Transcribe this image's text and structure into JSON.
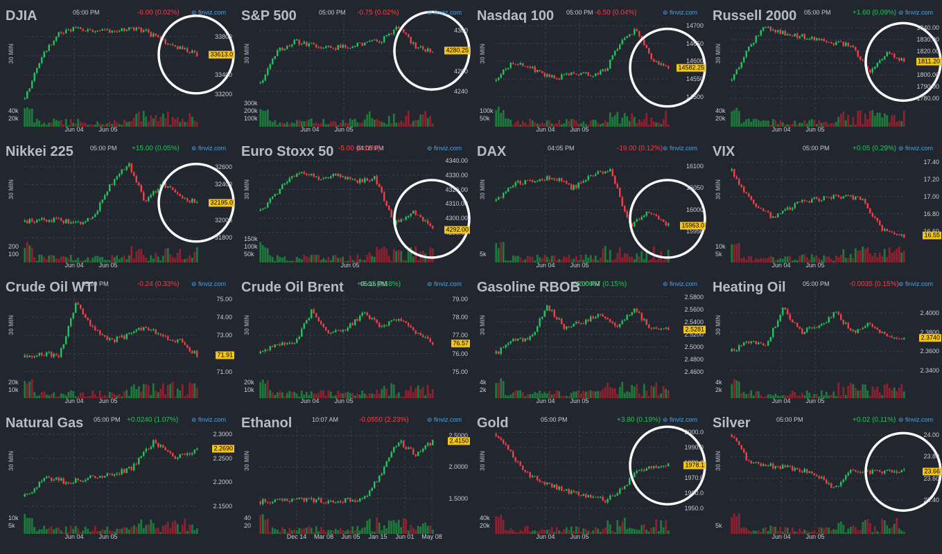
{
  "brand": "finviz.com",
  "side_label": "30 MIN",
  "colors": {
    "up": "#22c35a",
    "down": "#f23f45",
    "vol_up": "#1e7a3c",
    "vol_down": "#8c2230",
    "background": "#22262f",
    "highlight": "#f5c518"
  },
  "chart_data": [
    {
      "type": "candlestick",
      "title": "DJIA",
      "time": "05:00 PM",
      "change": "-6.00 (0.02%)",
      "direction": "neg",
      "last": "33613.0",
      "circled": true,
      "y_ticks": [
        "33800",
        "33600",
        "33400",
        "33200"
      ],
      "y_range": [
        33100,
        33950
      ],
      "vol_ticks": [
        "40k",
        "20k"
      ],
      "x_ticks": [
        "Jun 04",
        "Jun 05"
      ],
      "path": [
        33150,
        33600,
        33850,
        33880,
        33870,
        33860,
        33890,
        33860,
        33750,
        33680,
        33613
      ]
    },
    {
      "type": "candlestick",
      "title": "S&P 500",
      "time": "05:00 PM",
      "change": "-0.75 (0.02%)",
      "direction": "neg",
      "last": "4280.25",
      "circled": true,
      "y_ticks": [
        "4300",
        "4280",
        "4260",
        "4240"
      ],
      "y_range": [
        4228,
        4308
      ],
      "vol_ticks": [
        "300k",
        "200k",
        "100k"
      ],
      "x_ticks": [
        "Jun 04",
        "Jun 05"
      ],
      "path": [
        4248,
        4280,
        4289,
        4286,
        4283,
        4284,
        4287,
        4290,
        4303,
        4284,
        4280
      ]
    },
    {
      "type": "candlestick",
      "title": "Nasdaq 100",
      "time": "05:00 PM",
      "change": "-6.50 (0.04%)",
      "direction": "neg",
      "last": "14582.25",
      "circled": true,
      "y_ticks": [
        "14700",
        "14650",
        "14600",
        "14550",
        "14500"
      ],
      "y_range": [
        14480,
        14710
      ],
      "vol_ticks": [
        "100k",
        "50k"
      ],
      "x_ticks": [
        "Jun 04",
        "Jun 05"
      ],
      "path": [
        14545,
        14600,
        14590,
        14560,
        14555,
        14570,
        14560,
        14575,
        14660,
        14690,
        14600,
        14582
      ]
    },
    {
      "type": "candlestick",
      "title": "Russell 2000",
      "time": "05:00 PM",
      "change": "+1.60 (0.09%)",
      "direction": "pos",
      "last": "1811.20",
      "circled": true,
      "y_ticks": [
        "1840.00",
        "1830.00",
        "1820.00",
        "1810.00",
        "1800.00",
        "1790.00",
        "1780.00"
      ],
      "y_range": [
        1775,
        1845
      ],
      "vol_ticks": [
        "40k",
        "20k"
      ],
      "x_ticks": [
        "Jun 04",
        "Jun 05"
      ],
      "path": [
        1795,
        1825,
        1841,
        1836,
        1833,
        1830,
        1827,
        1825,
        1802,
        1819,
        1811
      ]
    },
    {
      "type": "candlestick",
      "title": "Nikkei 225",
      "time": "05:00 PM",
      "change": "+15.00 (0.05%)",
      "direction": "pos",
      "last": "32195.0",
      "circled": true,
      "y_ticks": [
        "32600",
        "32400",
        "32200",
        "32000",
        "31800"
      ],
      "y_range": [
        31780,
        32700
      ],
      "vol_ticks": [
        "200",
        "100"
      ],
      "x_ticks": [
        "Jun 04",
        "Jun 05"
      ],
      "path": [
        31980,
        32010,
        32000,
        31960,
        32050,
        32400,
        32650,
        32200,
        32420,
        32250,
        32195
      ]
    },
    {
      "type": "candlestick",
      "title": "Euro Stoxx 50",
      "time": "04:05 PM",
      "change": "-5.00 (0.12%)",
      "direction": "neg",
      "last": "4292.00",
      "circled": true,
      "y_ticks": [
        "4340.00",
        "4330.00",
        "4320.00",
        "4310.00",
        "4300.00",
        "4290.00"
      ],
      "y_range": [
        4285,
        4342
      ],
      "vol_ticks": [
        "150k",
        "100k",
        "50k"
      ],
      "x_ticks": [
        "Jun 05"
      ],
      "path": [
        4305,
        4320,
        4333,
        4328,
        4330,
        4326,
        4328,
        4296,
        4305,
        4292
      ]
    },
    {
      "type": "candlestick",
      "title": "DAX",
      "time": "04:05 PM",
      "change": "-19.00 (0.12%)",
      "direction": "neg",
      "last": "15963.0",
      "circled": true,
      "y_ticks": [
        "16100",
        "16050",
        "16000",
        "15950"
      ],
      "y_range": [
        15930,
        16120
      ],
      "vol_ticks": [
        "5k"
      ],
      "x_ticks": [
        "Jun 04",
        "Jun 05"
      ],
      "path": [
        16020,
        16060,
        16070,
        16075,
        16050,
        16080,
        16090,
        15960,
        15995,
        15963
      ]
    },
    {
      "type": "candlestick",
      "title": "VIX",
      "time": "05:00 PM",
      "change": "+0.05 (0.29%)",
      "direction": "pos",
      "last": "16.55",
      "circled": false,
      "y_ticks": [
        "17.40",
        "17.20",
        "17.00",
        "16.80",
        "16.60"
      ],
      "y_range": [
        16.5,
        17.45
      ],
      "vol_ticks": [
        "10k",
        "5k"
      ],
      "x_ticks": [
        "Jun 04",
        "Jun 05"
      ],
      "path": [
        17.3,
        16.9,
        16.75,
        16.92,
        16.97,
        17.0,
        16.98,
        16.6,
        16.55
      ]
    },
    {
      "type": "candlestick",
      "title": "Crude Oil WTI",
      "time": "05:00 PM",
      "change": "-0.24 (0.33%)",
      "direction": "neg",
      "last": "71.91",
      "circled": false,
      "y_ticks": [
        "75.00",
        "74.00",
        "73.00",
        "72.00",
        "71.00"
      ],
      "y_range": [
        70.8,
        75.3
      ],
      "vol_ticks": [
        "20k",
        "10k"
      ],
      "x_ticks": [
        "Jun 04",
        "Jun 05"
      ],
      "path": [
        71.8,
        72.0,
        71.9,
        74.8,
        73.4,
        72.7,
        73.0,
        73.5,
        72.9,
        72.7,
        71.91
      ]
    },
    {
      "type": "candlestick",
      "title": "Crude Oil Brent",
      "time": "05:16 PM",
      "change": "+0.44 (0.58%)",
      "direction": "pos",
      "last": "76.57",
      "circled": false,
      "y_ticks": [
        "79.00",
        "78.00",
        "77.00",
        "76.00",
        "75.00"
      ],
      "y_range": [
        74.8,
        79.3
      ],
      "vol_ticks": [
        "20k",
        "10k"
      ],
      "x_ticks": [
        "Jun 04",
        "Jun 05"
      ],
      "path": [
        76.0,
        76.5,
        76.6,
        78.4,
        77.1,
        77.4,
        78.2,
        77.5,
        78.0,
        77.2,
        76.57
      ]
    },
    {
      "type": "candlestick",
      "title": "Gasoline RBOB",
      "time": "05:00 PM",
      "change": "+0.0037 (0.15%)",
      "direction": "pos",
      "last": "2.5281",
      "circled": false,
      "y_ticks": [
        "2.5800",
        "2.5600",
        "2.5400",
        "2.5200",
        "2.5000",
        "2.4800",
        "2.4600"
      ],
      "y_range": [
        2.455,
        2.585
      ],
      "vol_ticks": [
        "4k",
        "2k"
      ],
      "x_ticks": [
        "Jun 04",
        "Jun 05"
      ],
      "path": [
        2.49,
        2.51,
        2.515,
        2.565,
        2.53,
        2.54,
        2.55,
        2.53,
        2.56,
        2.53,
        2.5281
      ]
    },
    {
      "type": "candlestick",
      "title": "Heating Oil",
      "time": "05:00 PM",
      "change": "-0.0035 (0.15%)",
      "direction": "neg",
      "last": "2.3740",
      "circled": false,
      "y_ticks": [
        "2.4000",
        "2.3800",
        "2.3600",
        "2.3400"
      ],
      "y_range": [
        2.335,
        2.42
      ],
      "vol_ticks": [
        "4k",
        "2k"
      ],
      "x_ticks": [
        "Jun 04",
        "Jun 05"
      ],
      "path": [
        2.36,
        2.37,
        2.368,
        2.405,
        2.38,
        2.385,
        2.4,
        2.38,
        2.39,
        2.375,
        2.374
      ]
    },
    {
      "type": "candlestick",
      "title": "Natural Gas",
      "time": "05:00 PM",
      "change": "+0.0240 (1.07%)",
      "direction": "pos",
      "last": "2.2690",
      "circled": false,
      "y_ticks": [
        "2.3000",
        "2.2500",
        "2.2000",
        "2.1500"
      ],
      "y_range": [
        2.14,
        2.31
      ],
      "vol_ticks": [
        "10k",
        "5k"
      ],
      "x_ticks": [
        "Jun 04",
        "Jun 05"
      ],
      "path": [
        2.17,
        2.21,
        2.2,
        2.21,
        2.215,
        2.23,
        2.285,
        2.25,
        2.269
      ]
    },
    {
      "type": "candlestick",
      "title": "Ethanol",
      "time": "10:07 AM",
      "change": "-0.0550 (2.23%)",
      "direction": "neg",
      "last": "2.4150",
      "circled": false,
      "y_ticks": [
        "2.5000",
        "2.0000",
        "1.5000"
      ],
      "y_range": [
        1.3,
        2.6
      ],
      "vol_ticks": [
        "40",
        "20"
      ],
      "x_ticks": [
        "Dec 14",
        "Mar 08",
        "Jun 05",
        "Jan 15",
        "Jun 01",
        "May 08"
      ],
      "path": [
        1.45,
        1.45,
        1.47,
        1.47,
        1.46,
        1.47,
        1.48,
        1.9,
        2.42,
        2.2,
        2.415
      ]
    },
    {
      "type": "candlestick",
      "title": "Gold",
      "time": "05:00 PM",
      "change": "+3.80 (0.19%)",
      "direction": "pos",
      "last": "1978.1",
      "circled": true,
      "y_ticks": [
        "2000.0",
        "1990.0",
        "1980.0",
        "1970.0",
        "1960.0",
        "1950.0"
      ],
      "y_range": [
        1948,
        2002
      ],
      "vol_ticks": [
        "40k",
        "20k"
      ],
      "x_ticks": [
        "Jun 04",
        "Jun 05"
      ],
      "path": [
        1999,
        1985,
        1973,
        1966,
        1963,
        1960,
        1958,
        1955,
        1962,
        1975,
        1977,
        1978.1
      ]
    },
    {
      "type": "candlestick",
      "title": "Silver",
      "time": "05:00 PM",
      "change": "+0.02 (0.11%)",
      "direction": "pos",
      "last": "23.66",
      "circled": true,
      "y_ticks": [
        "24.00",
        "23.80",
        "23.60",
        "23.40"
      ],
      "y_range": [
        23.3,
        24.05
      ],
      "vol_ticks": [
        "5k"
      ],
      "x_ticks": [
        "Jun 04",
        "Jun 05"
      ],
      "path": [
        24.0,
        23.75,
        23.72,
        23.7,
        23.68,
        23.62,
        23.5,
        23.68,
        23.66,
        23.67,
        23.66
      ]
    }
  ]
}
